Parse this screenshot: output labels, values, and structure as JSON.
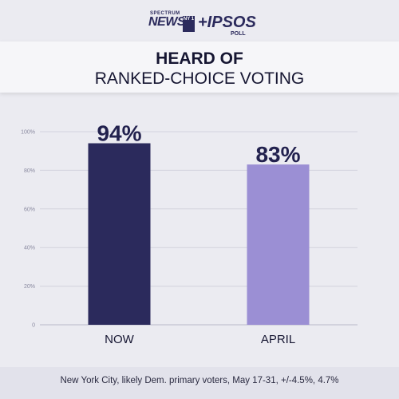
{
  "logo": {
    "spectrum": "SPECTRUM",
    "news": "NEWS",
    "ny_badge": "NY 1",
    "partner": "+IPSOS",
    "poll": "POLL"
  },
  "title": {
    "line1": "HEARD OF",
    "line2": "RANKED-CHOICE VOTING"
  },
  "chart_data": {
    "type": "bar",
    "categories": [
      "NOW",
      "APRIL"
    ],
    "values": [
      94,
      83
    ],
    "value_labels": [
      "94%",
      "83%"
    ],
    "colors": [
      "#2b2a5c",
      "#9b8fd4"
    ],
    "ylim": [
      0,
      100
    ],
    "yticks": [
      0,
      20,
      40,
      60,
      80,
      100
    ],
    "ytick_labels": [
      "0",
      "20%",
      "40%",
      "60%",
      "80%",
      "100%"
    ],
    "grid": true,
    "title": "",
    "xlabel": "",
    "ylabel": ""
  },
  "footer": {
    "note": "New York City, likely Dem. primary voters, May 17-31, +/-4.5%, 4.7%"
  }
}
